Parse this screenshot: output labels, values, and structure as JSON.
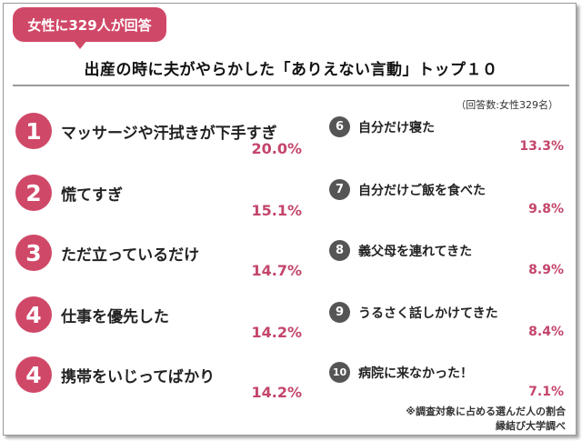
{
  "badge": "女性に329人が回答",
  "title": "出産の時に夫がやらかした「ありえない言動」トップ１０",
  "note": "（回答数:女性329名）",
  "footer": {
    "line1": "※調査対象に占める選んだ人の割合",
    "line2": "縁結び大学調べ"
  },
  "colors": {
    "accent": "#d04868",
    "value": "#c4456a",
    "rank_dark": "#555555"
  },
  "chart_data": {
    "type": "table",
    "title": "出産の時に夫がやらかした「ありえない言動」トップ１０",
    "columns": [
      "rank",
      "item",
      "percent"
    ],
    "rows": [
      {
        "rank": "1",
        "label": "マッサージや汗拭きが下手すぎ",
        "value": "20.0%"
      },
      {
        "rank": "2",
        "label": "慌てすぎ",
        "value": "15.1%"
      },
      {
        "rank": "3",
        "label": "ただ立っているだけ",
        "value": "14.7%"
      },
      {
        "rank": "4",
        "label": "仕事を優先した",
        "value": "14.2%"
      },
      {
        "rank": "4",
        "label": "携帯をいじってばかり",
        "value": "14.2%"
      },
      {
        "rank": "6",
        "label": "自分だけ寝た",
        "value": "13.3%"
      },
      {
        "rank": "7",
        "label": "自分だけご飯を食べた",
        "value": "9.8%"
      },
      {
        "rank": "8",
        "label": "義父母を連れてきた",
        "value": "8.9%"
      },
      {
        "rank": "9",
        "label": "うるさく話しかけてきた",
        "value": "8.4%"
      },
      {
        "rank": "10",
        "label": "病院に来なかった！",
        "value": "7.1%"
      }
    ]
  }
}
